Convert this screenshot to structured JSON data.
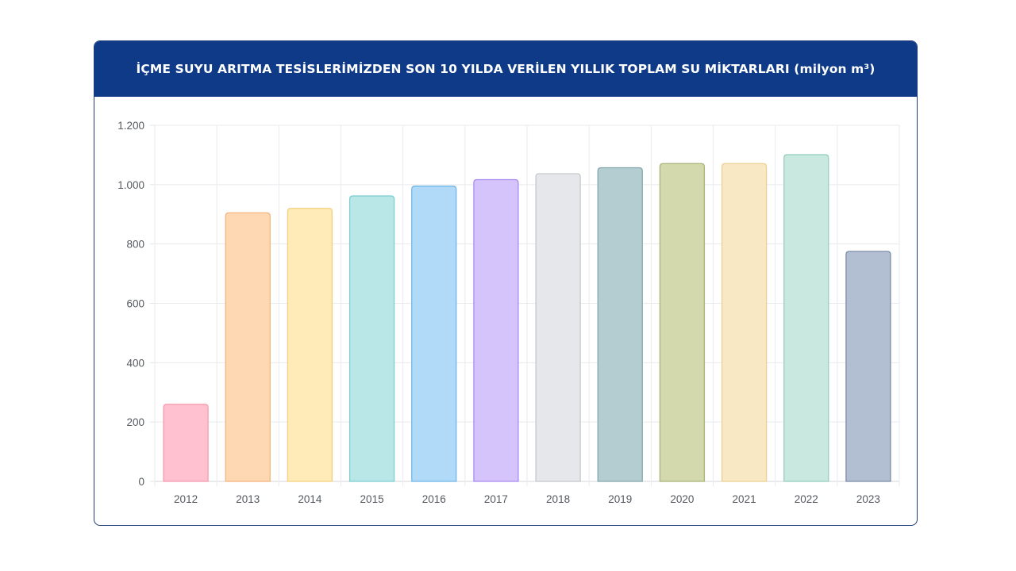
{
  "chart_data": {
    "type": "bar",
    "title": "İÇME SUYU ARITMA TESİSLERİMİZDEN SON 10 YILDA VERİLEN YILLIK TOPLAM SU MİKTARLARI (milyon m³)",
    "xlabel": "",
    "ylabel": "",
    "categories": [
      "2012",
      "2013",
      "2014",
      "2015",
      "2016",
      "2017",
      "2018",
      "2019",
      "2020",
      "2021",
      "2022",
      "2023"
    ],
    "values": [
      260,
      905,
      920,
      962,
      995,
      1017,
      1037,
      1057,
      1071,
      1071,
      1101,
      775
    ],
    "ylim": [
      0,
      1200
    ],
    "yticks": [
      0,
      200,
      400,
      600,
      800,
      1000,
      1200
    ],
    "ytick_labels": [
      "0",
      "200",
      "400",
      "600",
      "800",
      "1.000",
      "1.200"
    ],
    "grid": true,
    "legend": "none",
    "bar_colors": [
      {
        "fill": "#ffc1cf",
        "stroke": "#f59bb0"
      },
      {
        "fill": "#fdd8b3",
        "stroke": "#f5b47c"
      },
      {
        "fill": "#feebb8",
        "stroke": "#f3d07d"
      },
      {
        "fill": "#b9e6e7",
        "stroke": "#7fcfd1"
      },
      {
        "fill": "#b0daf7",
        "stroke": "#72b6e8"
      },
      {
        "fill": "#d5c3fb",
        "stroke": "#a98cf1"
      },
      {
        "fill": "#e6e7ea",
        "stroke": "#c5c8cd"
      },
      {
        "fill": "#b4cdd1",
        "stroke": "#86a7ad"
      },
      {
        "fill": "#d3d9ad",
        "stroke": "#a9b478"
      },
      {
        "fill": "#f8e8c4",
        "stroke": "#ead193"
      },
      {
        "fill": "#c9e8df",
        "stroke": "#96cfbd"
      },
      {
        "fill": "#b2bfd2",
        "stroke": "#7d8daa"
      }
    ]
  }
}
